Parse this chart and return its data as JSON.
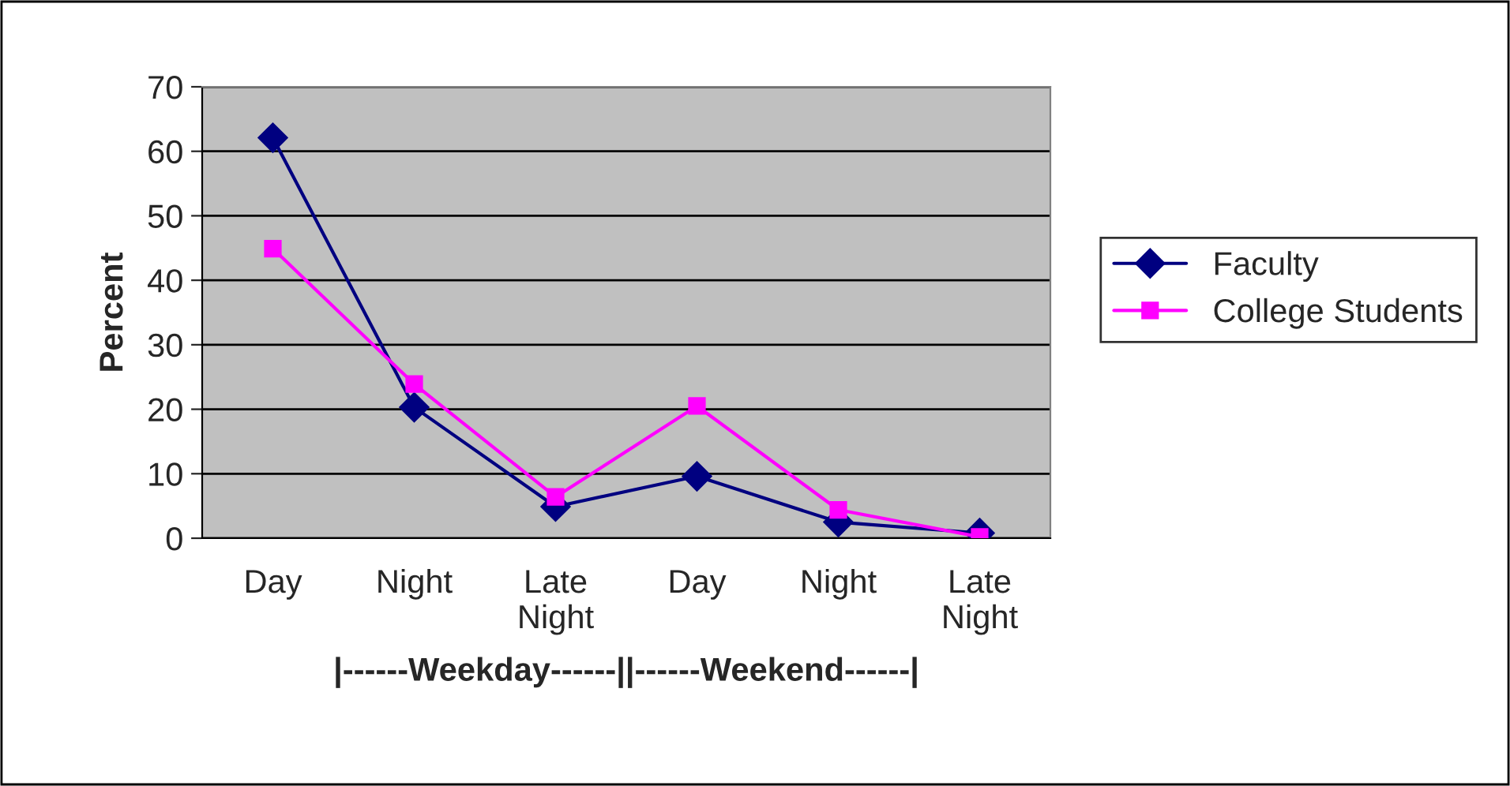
{
  "chart_data": {
    "type": "line",
    "categories": [
      "Day",
      "Night",
      "Late\nNight",
      "Day",
      "Night",
      "Late\nNight"
    ],
    "xlabel": "|------Weekday------||------Weekend------|",
    "ylabel": "Percent",
    "ylim": [
      0,
      70
    ],
    "yticks": [
      0,
      10,
      20,
      30,
      40,
      50,
      60,
      70
    ],
    "grid": "y",
    "legend": "right",
    "series": [
      {
        "name": "Faculty",
        "color": "#000080",
        "marker": "diamond",
        "values": [
          62.1,
          20.3,
          4.9,
          9.6,
          2.5,
          0.8
        ]
      },
      {
        "name": "College Students",
        "color": "#ff00ff",
        "marker": "square",
        "values": [
          44.9,
          23.9,
          6.4,
          20.5,
          4.4,
          0.2
        ]
      }
    ]
  }
}
